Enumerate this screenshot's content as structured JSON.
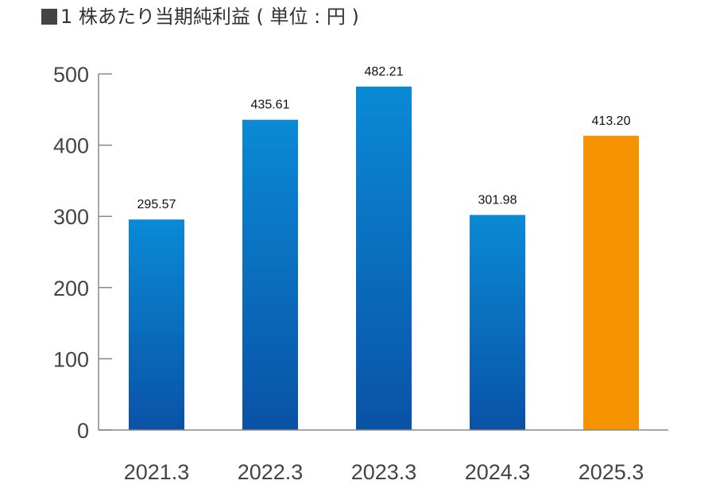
{
  "title": {
    "marker": "■",
    "number": "1",
    "text": "株あたり当期純利益 ( 単位 : 円 )"
  },
  "colors": {
    "bar_top": "#0a8ad6",
    "bar_bottom": "#0a52a6",
    "highlight": "#f59400",
    "axis": "#888888",
    "marker": "#444444"
  },
  "chart_data": {
    "type": "bar",
    "title": "■1 株あたり当期純利益 ( 単位 : 円 )",
    "categories": [
      "2021.3",
      "2022.3",
      "2023.3",
      "2024.3",
      "2025.3"
    ],
    "values": [
      295.57,
      435.61,
      482.21,
      301.98,
      413.2
    ],
    "value_labels": [
      "295.57",
      "435.61",
      "482.21",
      "301.98",
      "413.20"
    ],
    "highlight_index": 4,
    "ylim": [
      0,
      500
    ],
    "yticks": [
      0,
      100,
      200,
      300,
      400,
      500
    ],
    "xlabel": "",
    "ylabel": "",
    "grid": false,
    "legend": "none"
  }
}
